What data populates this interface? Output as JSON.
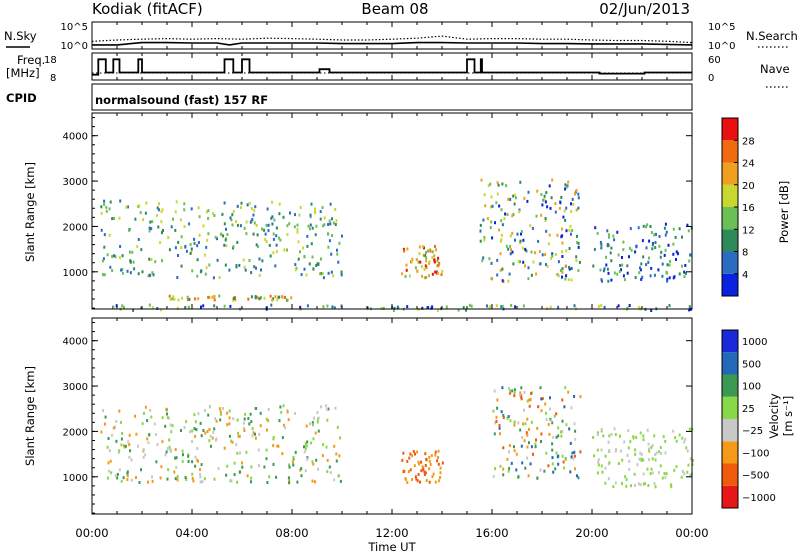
{
  "header": {
    "station": "Kodiak (fitACF)",
    "beam": "Beam 08",
    "date": "02/Jun/2013"
  },
  "colors": {
    "power_scale": [
      "#0a22e0",
      "#2a6cc0",
      "#2f8a5a",
      "#6bbf55",
      "#c9d830",
      "#f0a020",
      "#f06a10",
      "#e81010"
    ],
    "velocity_scale": [
      "#e81818",
      "#f05a0c",
      "#f59a18",
      "#c8c8c8",
      "#88d848",
      "#3a9a54",
      "#2468b8",
      "#1a2ad8"
    ]
  },
  "chart_data": [
    {
      "type": "line",
      "title": "",
      "xlabel": "",
      "left_label": "N.Sky",
      "right_label": "N.Search",
      "left_ticks": [
        "10^5",
        "10^0"
      ],
      "right_ticks": [
        "10^5",
        "10^0"
      ],
      "y_scale": "log",
      "ylim": [
        1,
        100000
      ],
      "series": [
        {
          "label": "N.Sky",
          "style": "solid",
          "x": [
            0,
            1,
            2,
            3,
            4,
            5,
            5.5,
            6,
            7,
            8,
            9,
            10,
            11,
            12,
            13,
            14,
            15,
            16,
            17,
            18,
            19,
            20,
            21,
            22,
            23,
            24
          ],
          "values": [
            3,
            3,
            10,
            10,
            8,
            8,
            3,
            8,
            8,
            8,
            8,
            6,
            6,
            6,
            10,
            10,
            8,
            8,
            8,
            6,
            6,
            5,
            5,
            5,
            4,
            3
          ]
        },
        {
          "label": "N.Search",
          "style": "dotted",
          "x": [
            0,
            1,
            2,
            3,
            4,
            5,
            6,
            7,
            8,
            9,
            10,
            11,
            12,
            13,
            14,
            15,
            16,
            17,
            18,
            19,
            20,
            21,
            22,
            23,
            24
          ],
          "values": [
            20,
            40,
            60,
            80,
            60,
            80,
            60,
            100,
            80,
            60,
            40,
            40,
            60,
            100,
            300,
            60,
            80,
            80,
            60,
            60,
            40,
            30,
            30,
            20,
            10
          ]
        }
      ]
    },
    {
      "type": "line",
      "title": "",
      "left_label": "Freq.",
      "left_unit": "[MHz]",
      "right_label": "Nave",
      "left_ticks": [
        "18",
        "8"
      ],
      "right_ticks": [
        "60",
        "0"
      ],
      "ylim": [
        8,
        18
      ],
      "series": [
        {
          "label": "Freq",
          "style": "solid",
          "x": [
            0,
            0.25,
            0.55,
            0.85,
            1.05,
            1.1,
            1.75,
            1.85,
            2.0,
            5.25,
            5.3,
            5.6,
            5.65,
            5.8,
            6.0,
            6.25,
            6.3,
            9.0,
            9.1,
            9.3,
            9.5,
            11.5,
            14.9,
            15.0,
            15.2,
            15.3,
            15.55,
            15.6,
            20.2,
            20.3,
            22.0,
            22.1,
            24
          ],
          "values": [
            9.5,
            16.5,
            10.5,
            16.5,
            16.5,
            10.5,
            10.5,
            16.5,
            10.5,
            10.5,
            16.5,
            16.5,
            10.5,
            10.5,
            16.5,
            16.5,
            10.5,
            10.5,
            12,
            12,
            10.5,
            10.5,
            10.5,
            16.5,
            16.5,
            10.5,
            16.5,
            10.5,
            10.5,
            10,
            10,
            10.5,
            10.5
          ]
        },
        {
          "label": "Nave",
          "style": "dotted",
          "x": [
            0,
            24
          ],
          "values": [
            20,
            20
          ]
        }
      ]
    },
    {
      "type": "heatmap",
      "cpid": "CPID",
      "cpid_value": "normalsound (fast) 157 RF",
      "title": "",
      "ylabel": "Slant Range [km]",
      "xlim": [
        0,
        24
      ],
      "ylim": [
        180,
        4500
      ],
      "yticks": [
        "1000",
        "2000",
        "3000",
        "4000"
      ],
      "colorbar_label": "Power [dB]",
      "colorbar_ticks": [
        "4",
        "8",
        "12",
        "16",
        "20",
        "24",
        "28"
      ],
      "clim": [
        0,
        32
      ],
      "scatter_regions": [
        {
          "time_range": [
            "00:20",
            "10:00"
          ],
          "range_km": [
            900,
            2600
          ],
          "level": "8-20 dB"
        },
        {
          "time_range": [
            "03:00",
            "08:00"
          ],
          "range_km": [
            400,
            500
          ],
          "level": "12-24 dB"
        },
        {
          "time_range": [
            "12:20",
            "14:00"
          ],
          "range_km": [
            900,
            1600
          ],
          "level": "16-28 dB"
        },
        {
          "time_range": [
            "15:30",
            "19:30"
          ],
          "range_km": [
            800,
            3100
          ],
          "level": "8-24 dB"
        },
        {
          "time_range": [
            "20:00",
            "24:00"
          ],
          "range_km": [
            800,
            2100
          ],
          "level": "4-12 dB"
        },
        {
          "time_range": [
            "00:00",
            "24:00"
          ],
          "range_km": [
            180,
            300
          ],
          "level": "4-16 dB"
        }
      ]
    },
    {
      "type": "heatmap",
      "title": "",
      "ylabel": "Slant Range [km]",
      "xlabel": "Time UT",
      "xticks": [
        "00:00",
        "04:00",
        "08:00",
        "12:00",
        "16:00",
        "20:00",
        "00:00"
      ],
      "xlim": [
        0,
        24
      ],
      "ylim": [
        180,
        4500
      ],
      "yticks": [
        "1000",
        "2000",
        "3000",
        "4000"
      ],
      "colorbar_label": "Velocity",
      "colorbar_unit": "[m s⁻¹]",
      "colorbar_ticks": [
        "1000",
        "500",
        "100",
        "25",
        "−25",
        "−100",
        "−500",
        "−1000"
      ],
      "scatter_regions": [
        {
          "time_range": [
            "00:20",
            "10:00"
          ],
          "range_km": [
            900,
            2600
          ],
          "level": "−100 to 100 m/s"
        },
        {
          "time_range": [
            "12:20",
            "14:00"
          ],
          "range_km": [
            900,
            1600
          ],
          "level": "−500 to −100 m/s"
        },
        {
          "time_range": [
            "16:00",
            "19:30"
          ],
          "range_km": [
            1000,
            3000
          ],
          "level": "−500 to 500 m/s"
        },
        {
          "time_range": [
            "20:00",
            "24:00"
          ],
          "range_km": [
            800,
            2100
          ],
          "level": "−25 to 100 m/s"
        }
      ]
    }
  ]
}
